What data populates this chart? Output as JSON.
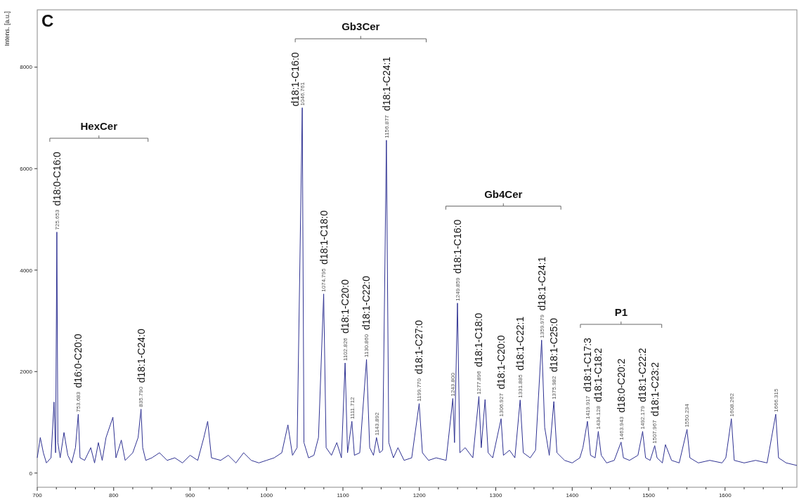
{
  "chart_data": {
    "type": "line",
    "title": "C",
    "ylabel": "Intens. [a.u.]",
    "xlim": [
      700,
      1694
    ],
    "ylim": [
      -280,
      9130
    ],
    "xticks": [
      700,
      {
        "value": 725,
        "label": null
      },
      {
        "value": 750,
        "label": null
      },
      {
        "value": 775,
        "label": null
      },
      800,
      {
        "value": 825,
        "label": null
      },
      {
        "value": 850,
        "label": null
      },
      {
        "value": 875,
        "label": null
      },
      900,
      {
        "value": 925,
        "label": null
      },
      {
        "value": 950,
        "label": null
      },
      {
        "value": 975,
        "label": null
      },
      1000,
      {
        "value": 1025,
        "label": null
      },
      {
        "value": 1050,
        "label": null
      },
      {
        "value": 1075,
        "label": null
      },
      1100,
      {
        "value": 1125,
        "label": null
      },
      {
        "value": 1150,
        "label": null
      },
      {
        "value": 1175,
        "label": null
      },
      1200,
      {
        "value": 1225,
        "label": null
      },
      {
        "value": 1250,
        "label": null
      },
      {
        "value": 1275,
        "label": null
      },
      1300,
      {
        "value": 1325,
        "label": null
      },
      {
        "value": 1350,
        "label": null
      },
      {
        "value": 1375,
        "label": null
      },
      1400,
      {
        "value": 1425,
        "label": null
      },
      {
        "value": 1450,
        "label": null
      },
      {
        "value": 1475,
        "label": null
      },
      1500,
      {
        "value": 1525,
        "label": null
      },
      {
        "value": 1550,
        "label": null
      },
      {
        "value": 1575,
        "label": null
      },
      1600,
      {
        "value": 1625,
        "label": null
      },
      {
        "value": 1650,
        "label": null
      },
      {
        "value": 1675,
        "label": null
      }
    ],
    "yticks": [
      0,
      2000,
      4000,
      6000,
      8000
    ],
    "grid": false,
    "marker": "none",
    "line_style": "solid",
    "series": [
      {
        "color": "#2e3192",
        "x": [
          700,
          704,
          708,
          712,
          718,
          722,
          724,
          725.653,
          727,
          730,
          735,
          740,
          745,
          750,
          753.683,
          756,
          762,
          770,
          775,
          780,
          785,
          790,
          799,
          803,
          810,
          815,
          825,
          832,
          835.79,
          838,
          842,
          850,
          860,
          870,
          880,
          890,
          900,
          910,
          918,
          923,
          928,
          940,
          950,
          960,
          970,
          980,
          990,
          1000,
          1010,
          1020,
          1028,
          1034,
          1040,
          1046.761,
          1049,
          1055,
          1062,
          1068,
          1074.795,
          1078,
          1085,
          1092,
          1098,
          1102.826,
          1106,
          1111.712,
          1115,
          1122,
          1130.86,
          1135,
          1140,
          1143.892,
          1148,
          1152,
          1156.877,
          1160,
          1166,
          1172,
          1180,
          1190,
          1199.77,
          1204,
          1212,
          1222,
          1235,
          1243.8,
          1246,
          1249.859,
          1253,
          1260,
          1270,
          1277.896,
          1281,
          1286,
          1290,
          1296,
          1306.927,
          1310,
          1318,
          1325,
          1331.885,
          1336,
          1345,
          1352,
          1359.979,
          1364,
          1370,
          1375.982,
          1380,
          1390,
          1400,
          1410,
          1414,
          1419.917,
          1424,
          1430,
          1434.128,
          1438,
          1445,
          1455,
          1463.943,
          1467,
          1475,
          1486,
          1492.179,
          1496,
          1502,
          1507.967,
          1511,
          1518,
          1522,
          1530,
          1540,
          1550.234,
          1554,
          1565,
          1580,
          1596,
          1601,
          1608.262,
          1612,
          1625,
          1640,
          1655,
          1666.315,
          1670,
          1680,
          1694
        ],
        "values": [
          300,
          700,
          400,
          200,
          300,
          1400,
          400,
          4750,
          600,
          300,
          800,
          350,
          200,
          500,
          1160,
          300,
          250,
          500,
          200,
          600,
          250,
          700,
          1100,
          300,
          650,
          250,
          400,
          700,
          1260,
          500,
          250,
          300,
          400,
          250,
          300,
          200,
          350,
          250,
          700,
          1020,
          300,
          250,
          350,
          200,
          400,
          250,
          200,
          250,
          300,
          400,
          950,
          350,
          500,
          7200,
          600,
          300,
          350,
          700,
          3530,
          500,
          350,
          600,
          300,
          2170,
          400,
          1020,
          350,
          400,
          2240,
          500,
          350,
          700,
          400,
          450,
          6560,
          600,
          300,
          500,
          250,
          300,
          1370,
          400,
          250,
          300,
          250,
          1470,
          600,
          3350,
          400,
          500,
          300,
          1510,
          500,
          1450,
          400,
          300,
          1070,
          350,
          450,
          300,
          1440,
          400,
          300,
          450,
          2620,
          900,
          350,
          1410,
          400,
          250,
          200,
          300,
          500,
          1020,
          350,
          300,
          820,
          350,
          200,
          250,
          610,
          300,
          250,
          350,
          820,
          300,
          250,
          540,
          300,
          200,
          560,
          250,
          200,
          860,
          300,
          200,
          250,
          200,
          300,
          1070,
          250,
          200,
          250,
          200,
          1160,
          300,
          200,
          150
        ]
      }
    ],
    "annotations": [
      {
        "text": "1550.234",
        "x": 1550.234,
        "y": 860
      },
      {
        "text": "1608.262",
        "x": 1608.262,
        "y": 1070
      },
      {
        "text": "1666.315",
        "x": 1666.315,
        "y": 1160
      },
      "HexCer",
      {
        "text": "725.653",
        "x": 725.653,
        "y": 4750
      },
      {
        "text": "d18:0-C16:0",
        "x": 725.653,
        "y": 4750
      },
      {
        "text": "753.683",
        "x": 753.683,
        "y": 1160
      },
      {
        "text": "d16:0-C20:0",
        "x": 753.683,
        "y": 1160
      },
      {
        "text": "835.790",
        "x": 835.79,
        "y": 1260
      },
      {
        "text": "d18:1-C24:0",
        "x": 835.79,
        "y": 1260
      },
      "Gb3Cer",
      {
        "text": "1046.761",
        "x": 1046.761,
        "y": 7200
      },
      {
        "text": "d18:1-C16:0",
        "x": 1046.761,
        "y": 7200
      },
      {
        "text": "1074.795",
        "x": 1074.795,
        "y": 3530
      },
      {
        "text": "d18:1-C18:0",
        "x": 1074.795,
        "y": 3530
      },
      {
        "text": "1102.826",
        "x": 1102.826,
        "y": 2170
      },
      {
        "text": "d18:1-C20:0",
        "x": 1102.826,
        "y": 2170
      },
      {
        "text": "1111.712",
        "x": 1111.712,
        "y": 1020
      },
      {
        "text": "1130.860",
        "x": 1130.86,
        "y": 2240
      },
      {
        "text": "d18:1-C22:0",
        "x": 1130.86,
        "y": 2240
      },
      {
        "text": "1143.892",
        "x": 1143.892,
        "y": 700
      },
      {
        "text": "1156.877",
        "x": 1156.877,
        "y": 6560
      },
      {
        "text": "d18:1-C24:1",
        "x": 1156.877,
        "y": 6560
      },
      {
        "text": "1199.770",
        "x": 1199.77,
        "y": 1370
      },
      {
        "text": "d18:1-C27:0",
        "x": 1199.77,
        "y": 1370
      },
      "Gb4Cer",
      {
        "text": "1243.800",
        "x": 1243.8,
        "y": 1470
      },
      {
        "text": "1249.859",
        "x": 1249.859,
        "y": 3350
      },
      {
        "text": "d18:1-C16:0",
        "x": 1249.859,
        "y": 3350
      },
      {
        "text": "1277.896",
        "x": 1277.896,
        "y": 1510
      },
      {
        "text": "d18:1-C18:0",
        "x": 1277.896,
        "y": 1510
      },
      {
        "text": "1306.927",
        "x": 1306.927,
        "y": 1070
      },
      {
        "text": "d18:1-C20:0",
        "x": 1306.927,
        "y": 1070
      },
      {
        "text": "1331.885",
        "x": 1331.885,
        "y": 1440
      },
      {
        "text": "d18:1-C22:1",
        "x": 1331.885,
        "y": 1440
      },
      {
        "text": "1359.979",
        "x": 1359.979,
        "y": 2620
      },
      {
        "text": "d18:1-C24:1",
        "x": 1359.979,
        "y": 2620
      },
      {
        "text": "1375.982",
        "x": 1375.982,
        "y": 1410
      },
      {
        "text": "d18:1-C25:0",
        "x": 1375.982,
        "y": 1410
      },
      "P1",
      {
        "text": "1419.917",
        "x": 1419.917,
        "y": 1020
      },
      {
        "text": "d18:1-C17:3",
        "x": 1419.917,
        "y": 1020
      },
      {
        "text": "1434.128",
        "x": 1434.128,
        "y": 820
      },
      {
        "text": "d18:1-C18:2",
        "x": 1434.128,
        "y": 820
      },
      {
        "text": "1463.943",
        "x": 1463.943,
        "y": 610
      },
      {
        "text": "d18:0-C20:2",
        "x": 1463.943,
        "y": 610
      },
      {
        "text": "1492.179",
        "x": 1492.179,
        "y": 820
      },
      {
        "text": "d18:1-C22:2",
        "x": 1492.179,
        "y": 820
      },
      {
        "text": "1507.967",
        "x": 1507.967,
        "y": 540
      },
      {
        "text": "d18:1-C23:2",
        "x": 1507.967,
        "y": 540
      }
    ]
  }
}
